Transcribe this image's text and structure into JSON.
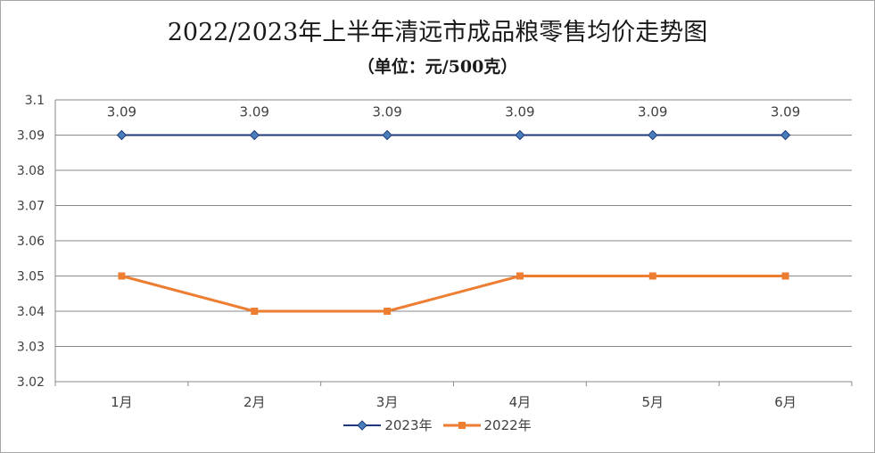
{
  "chart_data": {
    "type": "line",
    "title": "2022/2023年上半年清远市成品粮零售均价走势图",
    "subtitle": "（单位：元/500克）",
    "categories": [
      "1月",
      "2月",
      "3月",
      "4月",
      "5月",
      "6月"
    ],
    "series": [
      {
        "name": "2023年",
        "values": [
          3.09,
          3.09,
          3.09,
          3.09,
          3.09,
          3.09
        ],
        "data_labels": [
          "3.09",
          "3.09",
          "3.09",
          "3.09",
          "3.09",
          "3.09"
        ],
        "color": "#1f3a7a",
        "marker": "diamond",
        "marker_color": "#4a7ebb"
      },
      {
        "name": "2022年",
        "values": [
          3.05,
          3.04,
          3.04,
          3.05,
          3.05,
          3.05
        ],
        "color": "#ed7d31",
        "marker": "square",
        "marker_color": "#ed7d31"
      }
    ],
    "ylim": [
      3.02,
      3.1
    ],
    "yticks": [
      "3.02",
      "3.03",
      "3.04",
      "3.05",
      "3.06",
      "3.07",
      "3.08",
      "3.09",
      "3.1"
    ],
    "grid": true,
    "legend": "bottom"
  }
}
